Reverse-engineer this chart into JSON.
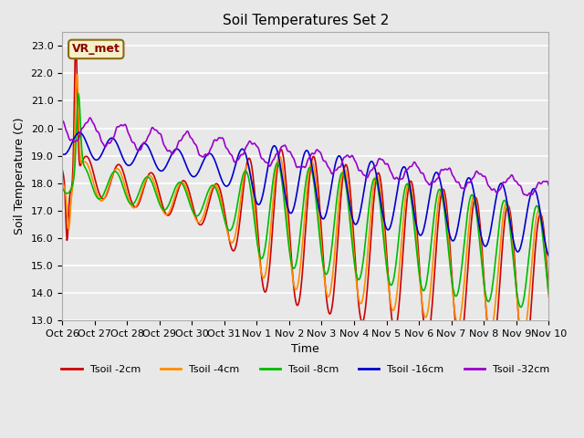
{
  "title": "Soil Temperatures Set 2",
  "xlabel": "Time",
  "ylabel": "Soil Temperature (C)",
  "ylim": [
    13.0,
    23.5
  ],
  "yticks": [
    13.0,
    14.0,
    15.0,
    16.0,
    17.0,
    18.0,
    19.0,
    20.0,
    21.0,
    22.0,
    23.0
  ],
  "xtick_labels": [
    "Oct 26",
    "Oct 27",
    "Oct 28",
    "Oct 29",
    "Oct 30",
    "Oct 31",
    "Nov 1",
    "Nov 2",
    "Nov 3",
    "Nov 4",
    "Nov 5",
    "Nov 6",
    "Nov 7",
    "Nov 8",
    "Nov 9",
    "Nov 10"
  ],
  "colors": [
    "#cc0000",
    "#ff8c00",
    "#00bb00",
    "#0000cc",
    "#9900cc"
  ],
  "labels": [
    "Tsoil -2cm",
    "Tsoil -4cm",
    "Tsoil -8cm",
    "Tsoil -16cm",
    "Tsoil -32cm"
  ],
  "bg_color": "#e8e8e8",
  "plot_bg_color": "#e8e8e8",
  "annotation_text": "VR_met",
  "lw": 1.2
}
